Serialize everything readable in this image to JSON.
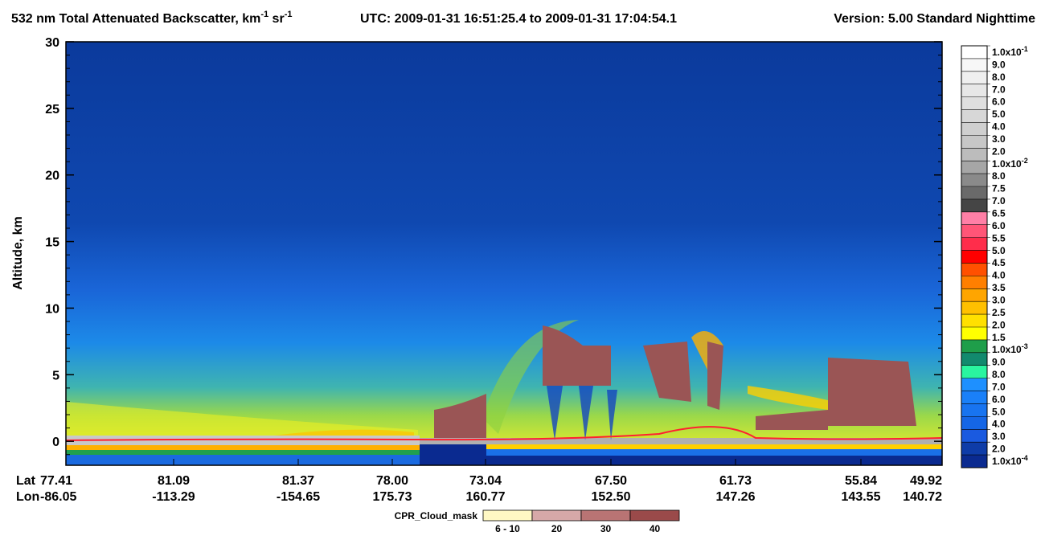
{
  "chart_data": {
    "type": "curtain",
    "title": {
      "text1": "532 nm Total Attenuated Backscatter, km",
      "sup1": "-1",
      "text2": " sr",
      "sup2": "-1"
    },
    "time_range": "UTC:  2009-01-31 16:51:25.4  to  2009-01-31 17:04:54.1",
    "version": "Version: 5.00  Standard  Nighttime",
    "y_label": "Altitude, km",
    "ylim": [
      -1.8,
      30
    ],
    "yticks": [
      0,
      5,
      10,
      15,
      20,
      25,
      30
    ],
    "lat_label": "Lat",
    "lon_label": "Lon",
    "lat": [
      "77.41",
      "81.09",
      "81.37",
      "78.00",
      "73.04",
      "67.50",
      "61.73",
      "55.84",
      "49.92"
    ],
    "lon": [
      "-86.05",
      "-113.29",
      "-154.65",
      "175.73",
      "160.77",
      "152.50",
      "147.26",
      "143.55",
      "140.72"
    ],
    "colorbar": {
      "labels": [
        {
          "base": "1.0x10",
          "exp": "-1"
        },
        "9.0",
        "8.0",
        "7.0",
        "6.0",
        "5.0",
        "4.0",
        "3.0",
        "2.0",
        {
          "base": "1.0x10",
          "exp": "-2"
        },
        "8.0",
        "7.5",
        "7.0",
        "6.5",
        "6.0",
        "5.5",
        "5.0",
        "4.5",
        "4.0",
        "3.5",
        "3.0",
        "2.5",
        "2.0",
        "1.5",
        {
          "base": "1.0x10",
          "exp": "-3"
        },
        "9.0",
        "8.0",
        "7.0",
        "6.0",
        "5.0",
        "4.0",
        "3.0",
        "2.0",
        {
          "base": "1.0x10",
          "exp": "-4"
        }
      ],
      "colors": [
        "#ffffff",
        "#f7f7f7",
        "#efefef",
        "#e7e7e7",
        "#dfdfdf",
        "#d7d7d7",
        "#cfcfcf",
        "#c7c7c7",
        "#bcbcbc",
        "#a6a6a6",
        "#8a8a8a",
        "#6a6a6a",
        "#454545",
        "#ff7fa6",
        "#ff5577",
        "#ff2d4b",
        "#ff0000",
        "#ff5000",
        "#ff7f00",
        "#ffa500",
        "#ffc000",
        "#ffe000",
        "#ffff00",
        "#1f9e4a",
        "#128a6e",
        "#2af5a0",
        "#1e90ff",
        "#1a80f8",
        "#1874f0",
        "#1566e6",
        "#1a5ae0",
        "#0e3ca8",
        "#0a2a90"
      ]
    },
    "cloud_mask": {
      "label": "CPR_Cloud_mask",
      "labels": [
        "6 - 10",
        "20",
        "30",
        "40"
      ],
      "colors": [
        "#fff8c4",
        "#d6a8a8",
        "#b97474",
        "#9a4a4a"
      ]
    }
  }
}
